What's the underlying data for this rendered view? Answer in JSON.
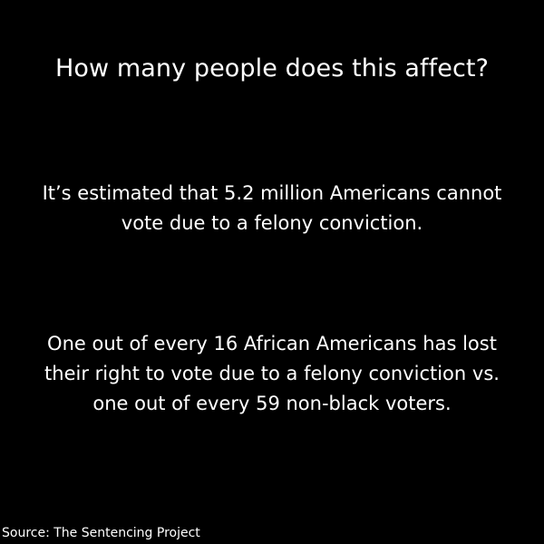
{
  "heading": "How many people does this affect?",
  "paragraph_1": {
    "lines": [
      "It’s estimated that 5.2 million Americans cannot",
      "vote due to a felony conviction."
    ]
  },
  "paragraph_2": {
    "lines": [
      "One out of every 16 African Americans has lost",
      "their right to vote due to a felony conviction vs.",
      "one out of every 59 non-black voters."
    ]
  },
  "source": "Source: The Sentencing Project",
  "colors": {
    "background": "#000000",
    "text": "#ffffff"
  }
}
